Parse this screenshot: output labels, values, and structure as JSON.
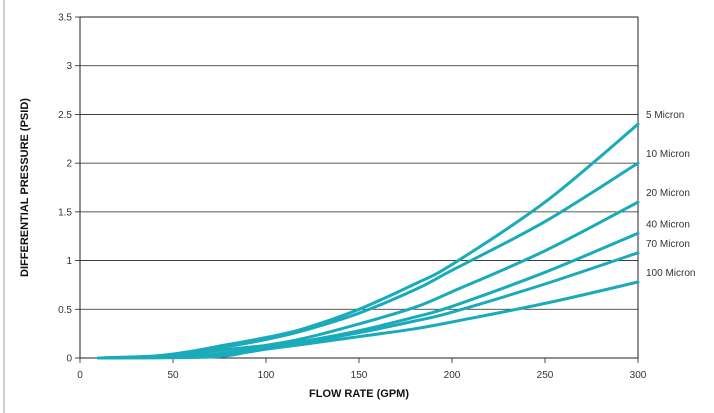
{
  "chart_data": {
    "type": "line",
    "title": "",
    "xlabel": "FLOW RATE (GPM)",
    "ylabel": "DIFFERENTIAL PRESSURE (PSID)",
    "xlim": [
      0,
      300
    ],
    "ylim": [
      0,
      3.5
    ],
    "xticks": [
      0,
      50,
      100,
      150,
      200,
      250,
      300
    ],
    "yticks": [
      0,
      0.5,
      1,
      1.5,
      2,
      2.5,
      3,
      3.5
    ],
    "xtick_labels": [
      "0",
      "50",
      "100",
      "150",
      "200",
      "250",
      "300"
    ],
    "ytick_labels": [
      "0",
      "0.5",
      "1",
      "1.5",
      "2",
      "2.5",
      "3",
      "3.5"
    ],
    "grid": "horizontal",
    "legend": "direct labels at right end of each line",
    "series_color": "#1aabba",
    "series": [
      {
        "name": "5 Micron",
        "x": [
          10,
          40,
          60,
          80,
          100,
          120,
          150,
          180,
          200,
          250,
          300
        ],
        "y": [
          0,
          0.02,
          0.07,
          0.14,
          0.21,
          0.3,
          0.5,
          0.76,
          0.96,
          1.6,
          2.4
        ]
      },
      {
        "name": "10 Micron",
        "x": [
          10,
          40,
          60,
          80,
          100,
          120,
          150,
          180,
          200,
          250,
          300
        ],
        "y": [
          0,
          0.02,
          0.06,
          0.12,
          0.19,
          0.28,
          0.46,
          0.7,
          0.9,
          1.4,
          2.0
        ]
      },
      {
        "name": "20 Micron",
        "x": [
          10,
          50,
          80,
          100,
          120,
          150,
          180,
          200,
          250,
          300
        ],
        "y": [
          0,
          0.02,
          0.09,
          0.13,
          0.2,
          0.35,
          0.52,
          0.68,
          1.1,
          1.6
        ]
      },
      {
        "name": "40 Micron",
        "x": [
          10,
          60,
          80,
          100,
          120,
          150,
          180,
          200,
          250,
          300
        ],
        "y": [
          0,
          0.02,
          0.06,
          0.11,
          0.17,
          0.28,
          0.42,
          0.53,
          0.88,
          1.28
        ]
      },
      {
        "name": "70 Micron",
        "x": [
          10,
          60,
          80,
          100,
          120,
          150,
          180,
          200,
          250,
          300
        ],
        "y": [
          0,
          0.01,
          0.05,
          0.1,
          0.16,
          0.26,
          0.38,
          0.47,
          0.76,
          1.08
        ]
      },
      {
        "name": "100 Micron",
        "x": [
          10,
          70,
          90,
          100,
          120,
          150,
          180,
          200,
          250,
          300
        ],
        "y": [
          0,
          0.01,
          0.06,
          0.09,
          0.14,
          0.22,
          0.3,
          0.37,
          0.56,
          0.78
        ]
      }
    ]
  }
}
